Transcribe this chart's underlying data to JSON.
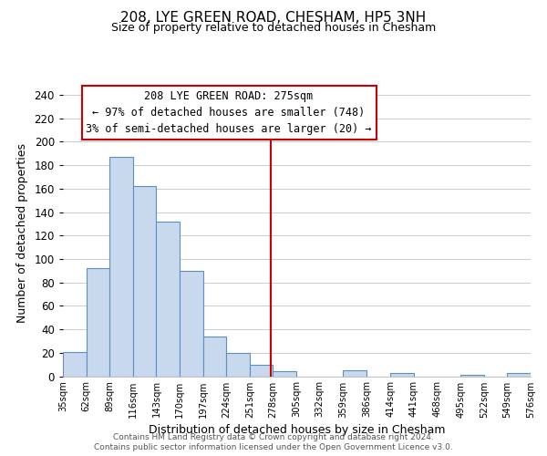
{
  "title": "208, LYE GREEN ROAD, CHESHAM, HP5 3NH",
  "subtitle": "Size of property relative to detached houses in Chesham",
  "xlabel": "Distribution of detached houses by size in Chesham",
  "ylabel": "Number of detached properties",
  "bin_edges": [
    35,
    62,
    89,
    116,
    143,
    170,
    197,
    224,
    251,
    278,
    305,
    332,
    359,
    386,
    414,
    441,
    468,
    495,
    522,
    549,
    576
  ],
  "bar_heights": [
    21,
    92,
    187,
    162,
    132,
    90,
    34,
    20,
    10,
    4,
    0,
    0,
    5,
    0,
    3,
    0,
    0,
    1,
    0,
    3
  ],
  "bar_facecolor": "#c9d9ed",
  "bar_edgecolor": "#5b8ec4",
  "property_size": 275,
  "vline_color": "#cc0000",
  "annotation_title": "208 LYE GREEN ROAD: 275sqm",
  "annotation_line1": "← 97% of detached houses are smaller (748)",
  "annotation_line2": "3% of semi-detached houses are larger (20) →",
  "annotation_box_edgecolor": "#cc0000",
  "ylim": [
    0,
    245
  ],
  "yticks": [
    0,
    20,
    40,
    60,
    80,
    100,
    120,
    140,
    160,
    180,
    200,
    220,
    240
  ],
  "tick_labels": [
    "35sqm",
    "62sqm",
    "89sqm",
    "116sqm",
    "143sqm",
    "170sqm",
    "197sqm",
    "224sqm",
    "251sqm",
    "278sqm",
    "305sqm",
    "332sqm",
    "359sqm",
    "386sqm",
    "414sqm",
    "441sqm",
    "468sqm",
    "495sqm",
    "522sqm",
    "549sqm",
    "576sqm"
  ],
  "footer1": "Contains HM Land Registry data © Crown copyright and database right 2024.",
  "footer2": "Contains public sector information licensed under the Open Government Licence v3.0.",
  "bg_color": "#ffffff",
  "grid_color": "#cccccc",
  "title_fontsize": 11,
  "subtitle_fontsize": 9,
  "xlabel_fontsize": 9,
  "ylabel_fontsize": 9,
  "xtick_fontsize": 7.2,
  "ytick_fontsize": 8.5,
  "footer_fontsize": 6.5,
  "annot_fontsize": 8.5
}
